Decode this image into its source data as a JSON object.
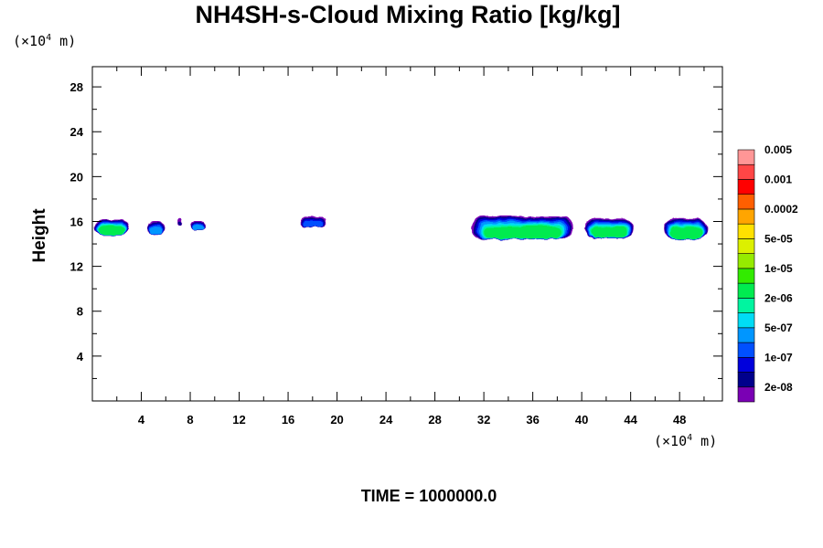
{
  "chart_data": {
    "type": "heatmap",
    "title": "NH4SH-s-Cloud Mixing Ratio [kg/kg]",
    "ylabel": "Height",
    "xlabel": "",
    "x_unit": {
      "prefix": "(×10",
      "exponent": "4",
      "suffix": " m)"
    },
    "y_unit": {
      "prefix": "(×10",
      "exponent": "4",
      "suffix": " m)"
    },
    "xlim": [
      0,
      51.5
    ],
    "ylim": [
      0,
      29.8
    ],
    "xticks": [
      4,
      8,
      12,
      16,
      20,
      24,
      28,
      32,
      36,
      40,
      44,
      48
    ],
    "yticks": [
      4,
      8,
      12,
      16,
      20,
      24,
      28
    ],
    "time_label": "TIME = 1000000.0",
    "colorbar": {
      "colors": [
        "#7a00b4",
        "#00008c",
        "#0000dc",
        "#0050ff",
        "#0096ff",
        "#00dcf5",
        "#00f5a0",
        "#00eb50",
        "#32eb00",
        "#96eb00",
        "#dcf000",
        "#ffe100",
        "#ffa500",
        "#ff5f00",
        "#ff0000",
        "#ff4646",
        "#ff9696"
      ],
      "labels": [
        "2e-08",
        "1e-07",
        "5e-07",
        "2e-06",
        "1e-05",
        "5e-05",
        "0.0002",
        "0.001",
        "0.005"
      ]
    },
    "cloud_patches": [
      {
        "x": [
          0.2,
          3.0
        ],
        "y": [
          14.8,
          16.2
        ],
        "level": 7
      },
      {
        "x": [
          4.5,
          5.9
        ],
        "y": [
          14.8,
          16.0
        ],
        "level": 4
      },
      {
        "x": [
          7.0,
          7.3
        ],
        "y": [
          15.7,
          16.3
        ],
        "level": 1
      },
      {
        "x": [
          8.0,
          9.3
        ],
        "y": [
          15.2,
          16.0
        ],
        "level": 4
      },
      {
        "x": [
          17.0,
          19.1
        ],
        "y": [
          15.5,
          16.5
        ],
        "level": 3
      },
      {
        "x": [
          31.0,
          39.3
        ],
        "y": [
          14.4,
          16.5
        ],
        "level": 7
      },
      {
        "x": [
          40.3,
          44.2
        ],
        "y": [
          14.5,
          16.3
        ],
        "level": 7
      },
      {
        "x": [
          46.8,
          50.3
        ],
        "y": [
          14.4,
          16.3
        ],
        "level": 7
      }
    ]
  }
}
